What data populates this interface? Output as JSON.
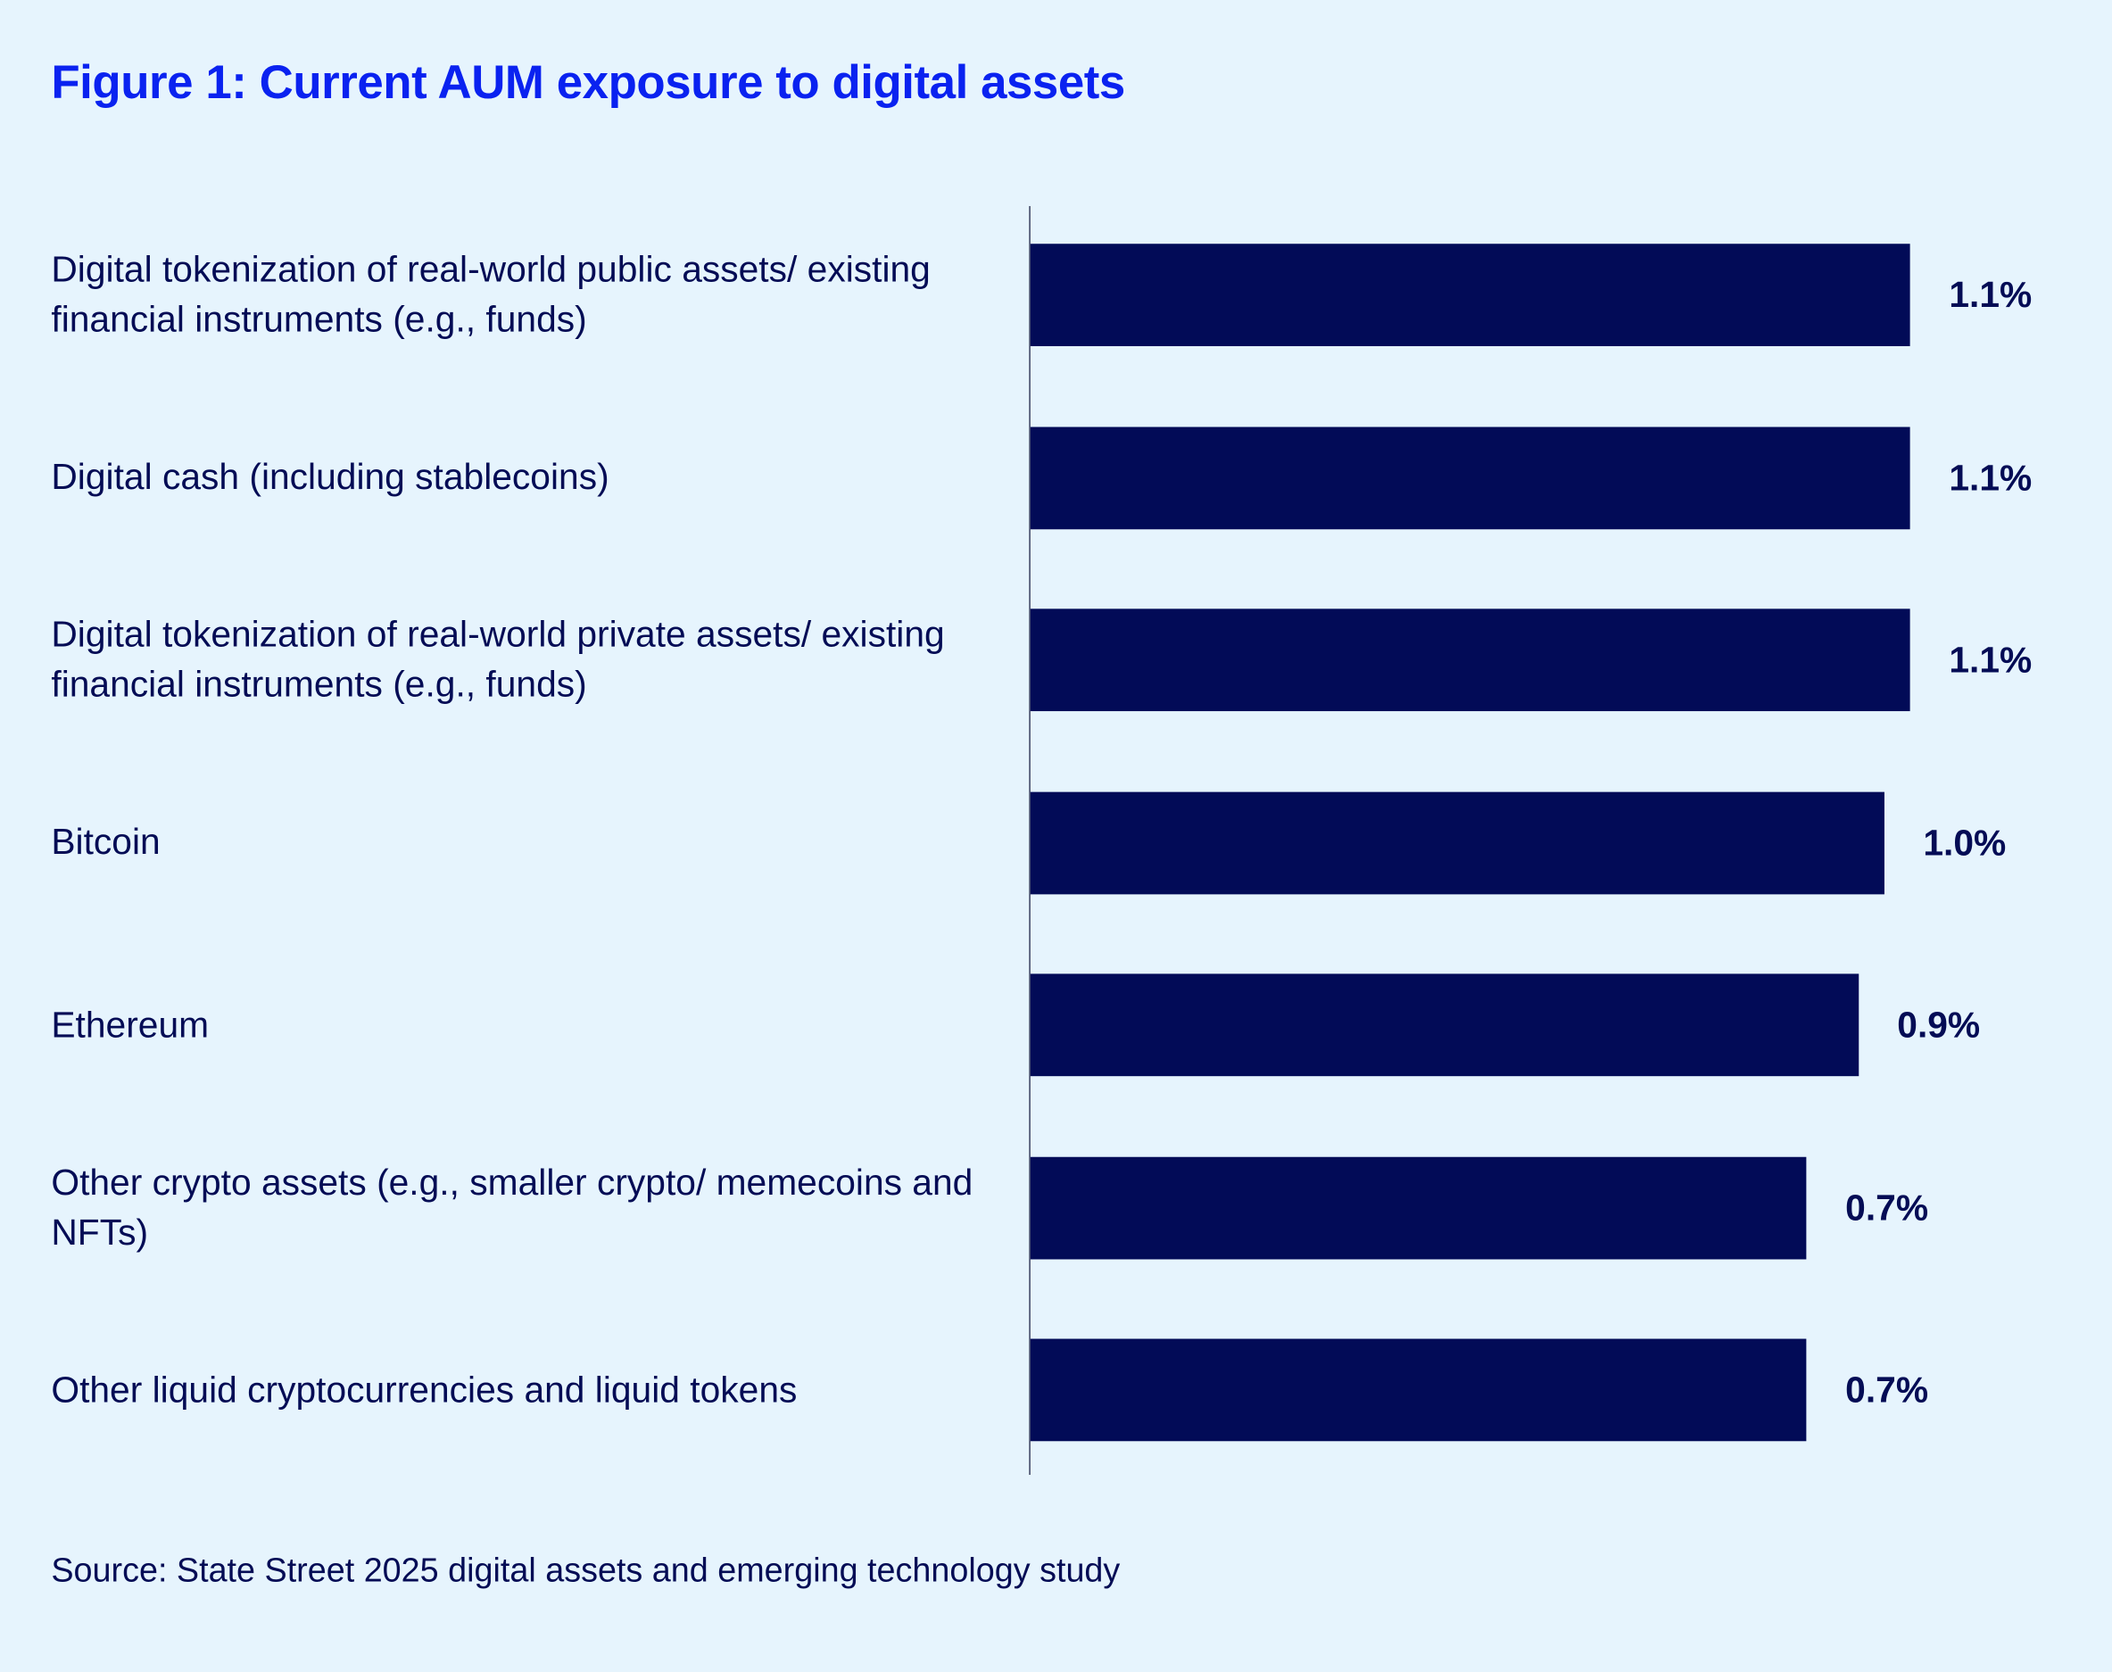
{
  "colors": {
    "background": "#e6f4fd",
    "title": "#0a22f0",
    "bar": "#020b57",
    "text": "#040c55"
  },
  "chart_data": {
    "type": "bar",
    "orientation": "horizontal",
    "title": "Figure 1: Current AUM exposure to digital assets",
    "categories": [
      "Digital tokenization of real-world public assets/ existing financial instruments (e.g., funds)",
      "Digital cash (including stablecoins)",
      "Digital tokenization of real-world private assets/ existing financial instruments (e.g., funds)",
      "Bitcoin",
      "Ethereum",
      "Other crypto assets (e.g., smaller crypto/ memecoins and NFTs)",
      "Other liquid cryptocurrencies and liquid tokens"
    ],
    "values": [
      1.1,
      1.1,
      1.1,
      1.0,
      0.9,
      0.7,
      0.7
    ],
    "data_labels": [
      "1.1%",
      "1.1%",
      "1.1%",
      "1.0%",
      "0.9%",
      "0.7%",
      "0.7%"
    ],
    "unit": "%",
    "grid": false,
    "source": "Source: State Street 2025 digital assets and emerging technology study"
  }
}
